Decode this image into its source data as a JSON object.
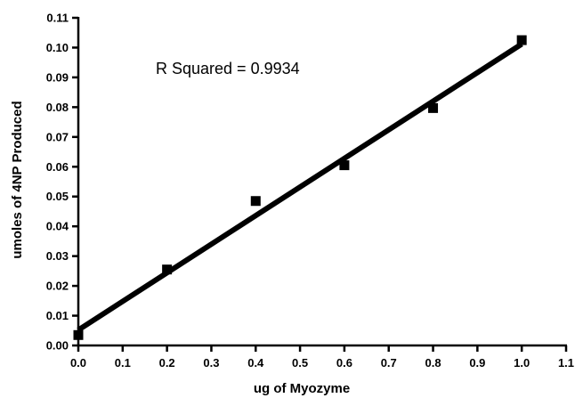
{
  "chart_data": {
    "type": "scatter",
    "xlabel": "ug of Myozyme",
    "ylabel": "umoles of 4NP Produced",
    "annotation": "R  Squared = 0.9934",
    "xlim": [
      0.0,
      1.1
    ],
    "ylim": [
      0.0,
      0.11
    ],
    "x_ticks": [
      "0.0",
      "0.1",
      "0.2",
      "0.3",
      "0.4",
      "0.5",
      "0.6",
      "0.7",
      "0.8",
      "0.9",
      "1.0",
      "1.1"
    ],
    "y_ticks": [
      "0.00",
      "0.01",
      "0.02",
      "0.03",
      "0.04",
      "0.05",
      "0.06",
      "0.07",
      "0.08",
      "0.09",
      "0.10",
      "0.11"
    ],
    "grid": false,
    "series": [
      {
        "points": [
          {
            "x": 0.0,
            "y": 0.0035
          },
          {
            "x": 0.2,
            "y": 0.0255
          },
          {
            "x": 0.4,
            "y": 0.0485
          },
          {
            "x": 0.6,
            "y": 0.0605
          },
          {
            "x": 0.8,
            "y": 0.0797
          },
          {
            "x": 1.0,
            "y": 0.1025
          }
        ]
      }
    ],
    "fit_line": {
      "x": [
        0.0,
        1.0
      ],
      "y": [
        0.0052,
        0.1012
      ]
    },
    "colors": {
      "marker": "#000000",
      "line": "#000000",
      "axis": "#000000"
    }
  }
}
